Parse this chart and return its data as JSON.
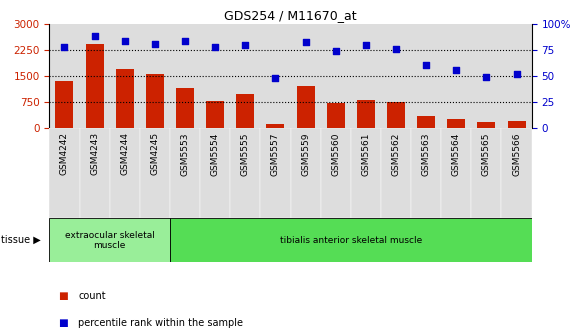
{
  "title": "GDS254 / M11670_at",
  "categories": [
    "GSM4242",
    "GSM4243",
    "GSM4244",
    "GSM4245",
    "GSM5553",
    "GSM5554",
    "GSM5555",
    "GSM5557",
    "GSM5559",
    "GSM5560",
    "GSM5561",
    "GSM5562",
    "GSM5563",
    "GSM5564",
    "GSM5565",
    "GSM5566"
  ],
  "counts": [
    1350,
    2420,
    1700,
    1540,
    1150,
    780,
    960,
    120,
    1200,
    700,
    800,
    730,
    340,
    240,
    155,
    205
  ],
  "percentiles": [
    77,
    88,
    83,
    80,
    83,
    77,
    79,
    48,
    82,
    74,
    79,
    76,
    60,
    55,
    49,
    52
  ],
  "left_ylim": [
    0,
    3000
  ],
  "right_ylim": [
    0,
    100
  ],
  "left_yticks": [
    0,
    750,
    1500,
    2250,
    3000
  ],
  "right_yticks": [
    0,
    25,
    50,
    75,
    100
  ],
  "right_yticklabels": [
    "0",
    "25",
    "50",
    "75",
    "100%"
  ],
  "bar_color": "#cc2200",
  "dot_color": "#0000cc",
  "tissue_groups": [
    {
      "label": "extraocular skeletal\nmuscle",
      "start": 0,
      "end": 4,
      "color": "#99ee99"
    },
    {
      "label": "tibialis anterior skeletal muscle",
      "start": 4,
      "end": 16,
      "color": "#55dd55"
    }
  ],
  "tissue_label": "tissue",
  "legend_items": [
    {
      "label": "count",
      "color": "#cc2200"
    },
    {
      "label": "percentile rank within the sample",
      "color": "#0000cc"
    }
  ],
  "background_color": "#ffffff",
  "plot_bg": "#ffffff",
  "col_bg": "#dddddd"
}
